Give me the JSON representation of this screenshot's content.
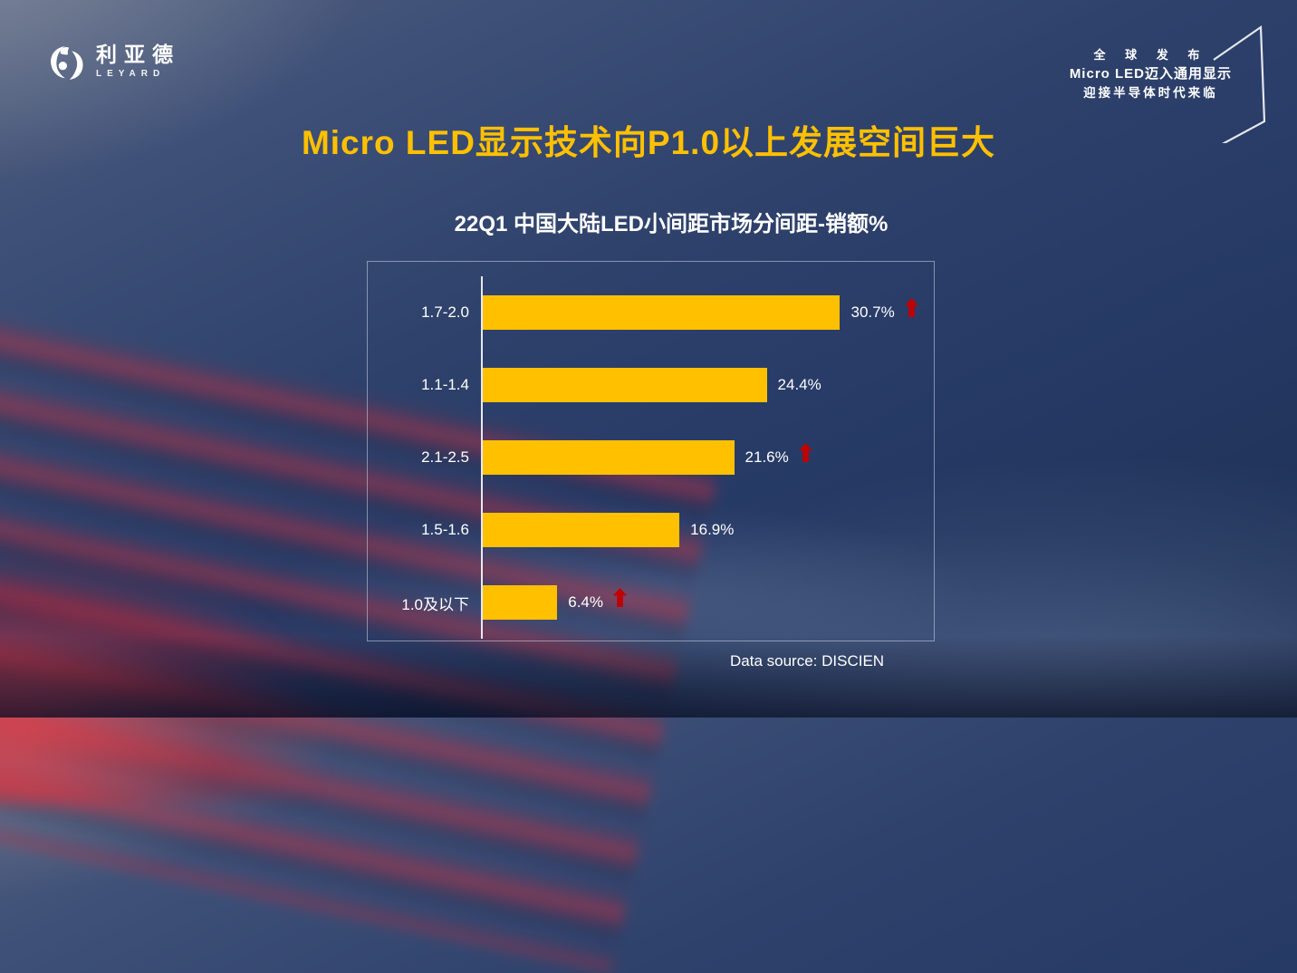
{
  "logo": {
    "cn": "利亚德",
    "en": "LEYARD",
    "icon": "leyard-swirl-icon"
  },
  "badge": {
    "line1": "全 球 发 布",
    "line2": "Micro LED迈入通用显示",
    "line3": "迎接半导体时代来临"
  },
  "title": "Micro LED显示技术向P1.0以上发展空间巨大",
  "chart_header": "22Q1 中国大陆LED小间距市场分间距-销额%",
  "source": "Data source: DISCIEN",
  "chart_data": {
    "type": "bar",
    "orientation": "horizontal",
    "title": "22Q1 中国大陆LED小间距市场分间距-销额%",
    "categories": [
      "1.7-2.0",
      "1.1-1.4",
      "2.1-2.5",
      "1.5-1.6",
      "1.0及以下"
    ],
    "values": [
      30.7,
      24.4,
      21.6,
      16.9,
      6.4
    ],
    "value_labels": [
      "30.7%",
      "24.4%",
      "21.6%",
      "16.9%",
      "6.4%"
    ],
    "up_arrow": [
      true,
      false,
      true,
      false,
      true
    ],
    "unit": "%",
    "xlim": [
      0,
      35
    ],
    "grid": false,
    "legend": false,
    "bar_color": "#FFC000",
    "arrow_color": "#C00000"
  },
  "colors": {
    "accent_gold": "#FFC000",
    "arrow_red": "#C00000",
    "bg_navy": "#263A66",
    "text_white": "#FFFFFF"
  }
}
